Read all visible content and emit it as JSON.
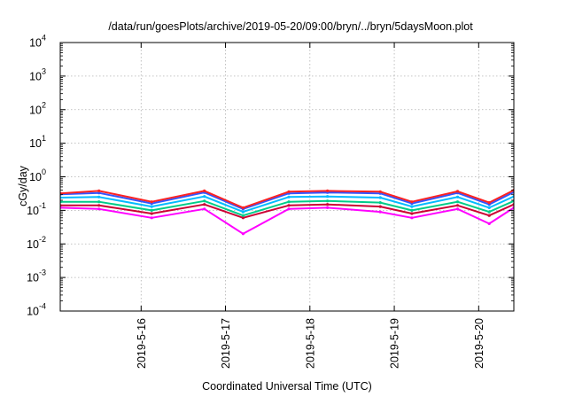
{
  "chart_data": {
    "type": "line",
    "title": "/data/run/goesPlots/archive/2019-05-20/09:00/bryn/../bryn/5daysMoon.plot",
    "xlabel": "Coordinated Universal Time (UTC)",
    "ylabel": "cGy/day",
    "yscale": "log",
    "ylim": [
      0.0001,
      10000
    ],
    "y_ticks": [
      {
        "value": 0.0001,
        "base": "10",
        "exp": "-4"
      },
      {
        "value": 0.001,
        "base": "10",
        "exp": "-3"
      },
      {
        "value": 0.01,
        "base": "10",
        "exp": "-2"
      },
      {
        "value": 0.1,
        "base": "10",
        "exp": "-1"
      },
      {
        "value": 1,
        "base": "10",
        "exp": "0"
      },
      {
        "value": 10,
        "base": "10",
        "exp": "1"
      },
      {
        "value": 100,
        "base": "10",
        "exp": "2"
      },
      {
        "value": 1000,
        "base": "10",
        "exp": "3"
      },
      {
        "value": 10000,
        "base": "10",
        "exp": "4"
      }
    ],
    "xlim": [
      "2019-05-15 01:00",
      "2019-05-20 10:00"
    ],
    "x_ticks": [
      "2019-5-16",
      "2019-5-17",
      "2019-5-18",
      "2019-5-19",
      "2019-5-20"
    ],
    "grid": true,
    "legend": "none",
    "series": [
      {
        "color": "#ff00ff",
        "x": [
          "2019-05-15 01:00",
          "2019-05-15 12:00",
          "2019-05-16 03:00",
          "2019-05-16 18:00",
          "2019-05-17 05:00",
          "2019-05-17 18:00",
          "2019-05-18 05:00",
          "2019-05-18 20:00",
          "2019-05-19 05:00",
          "2019-05-19 18:00",
          "2019-05-20 03:00",
          "2019-05-20 10:00"
        ],
        "values": [
          0.12,
          0.11,
          0.06,
          0.11,
          0.02,
          0.11,
          0.12,
          0.09,
          0.06,
          0.11,
          0.04,
          0.12
        ]
      },
      {
        "color": "#cc0033",
        "x": [
          "2019-05-15 01:00",
          "2019-05-15 12:00",
          "2019-05-16 03:00",
          "2019-05-16 18:00",
          "2019-05-17 05:00",
          "2019-05-17 18:00",
          "2019-05-18 05:00",
          "2019-05-18 20:00",
          "2019-05-19 05:00",
          "2019-05-19 18:00",
          "2019-05-20 03:00",
          "2019-05-20 10:00"
        ],
        "values": [
          0.14,
          0.14,
          0.08,
          0.15,
          0.06,
          0.14,
          0.15,
          0.13,
          0.08,
          0.14,
          0.07,
          0.15
        ]
      },
      {
        "color": "#00cc88",
        "x": [
          "2019-05-15 01:00",
          "2019-05-15 12:00",
          "2019-05-16 03:00",
          "2019-05-16 18:00",
          "2019-05-17 05:00",
          "2019-05-17 18:00",
          "2019-05-18 05:00",
          "2019-05-18 20:00",
          "2019-05-19 05:00",
          "2019-05-19 18:00",
          "2019-05-20 03:00",
          "2019-05-20 10:00"
        ],
        "values": [
          0.18,
          0.18,
          0.1,
          0.19,
          0.07,
          0.18,
          0.19,
          0.17,
          0.1,
          0.18,
          0.09,
          0.19
        ]
      },
      {
        "color": "#00bbff",
        "x": [
          "2019-05-15 01:00",
          "2019-05-15 12:00",
          "2019-05-16 03:00",
          "2019-05-16 18:00",
          "2019-05-17 05:00",
          "2019-05-17 18:00",
          "2019-05-18 05:00",
          "2019-05-18 20:00",
          "2019-05-19 05:00",
          "2019-05-19 18:00",
          "2019-05-20 03:00",
          "2019-05-20 10:00"
        ],
        "values": [
          0.24,
          0.25,
          0.13,
          0.26,
          0.09,
          0.25,
          0.26,
          0.24,
          0.13,
          0.25,
          0.12,
          0.26
        ]
      },
      {
        "color": "#3355ff",
        "x": [
          "2019-05-15 01:00",
          "2019-05-15 12:00",
          "2019-05-16 03:00",
          "2019-05-16 18:00",
          "2019-05-17 05:00",
          "2019-05-17 18:00",
          "2019-05-18 05:00",
          "2019-05-18 20:00",
          "2019-05-19 05:00",
          "2019-05-19 18:00",
          "2019-05-20 03:00",
          "2019-05-20 10:00"
        ],
        "values": [
          0.3,
          0.33,
          0.16,
          0.34,
          0.11,
          0.32,
          0.34,
          0.32,
          0.16,
          0.33,
          0.15,
          0.35
        ]
      },
      {
        "color": "#ff2222",
        "x": [
          "2019-05-15 01:00",
          "2019-05-15 12:00",
          "2019-05-16 03:00",
          "2019-05-16 18:00",
          "2019-05-17 05:00",
          "2019-05-17 18:00",
          "2019-05-18 05:00",
          "2019-05-18 20:00",
          "2019-05-19 05:00",
          "2019-05-19 18:00",
          "2019-05-20 03:00",
          "2019-05-20 10:00"
        ],
        "values": [
          0.32,
          0.38,
          0.18,
          0.38,
          0.12,
          0.36,
          0.38,
          0.36,
          0.18,
          0.37,
          0.17,
          0.4
        ]
      }
    ]
  }
}
